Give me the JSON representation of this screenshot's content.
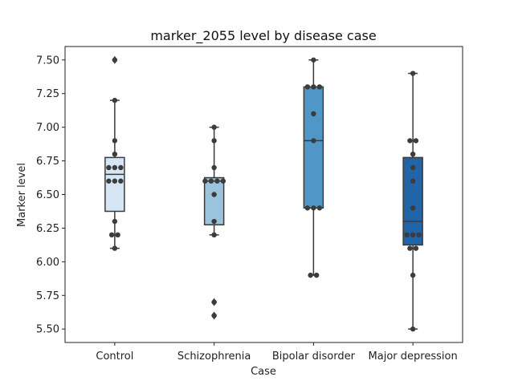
{
  "chart_data": {
    "type": "box",
    "title": "marker_2055 level by disease case",
    "xlabel": "Case",
    "ylabel": "Marker level",
    "ylim": [
      5.4,
      7.6
    ],
    "yticks": [
      "5.50",
      "5.75",
      "6.00",
      "6.25",
      "6.50",
      "6.75",
      "7.00",
      "7.25",
      "7.50"
    ],
    "ytick_values": [
      5.5,
      5.75,
      6.0,
      6.25,
      6.5,
      6.75,
      7.0,
      7.25,
      7.5
    ],
    "grid": false,
    "categories": [
      "Control",
      "Schizophrenia",
      "Bipolar disorder",
      "Major depression"
    ],
    "colors": [
      "#d6e6f4",
      "#9cc3dc",
      "#5096c6",
      "#2264a8"
    ],
    "boxes": [
      {
        "q1": 6.375,
        "median": 6.65,
        "q3": 6.775,
        "whisker_low": 6.1,
        "whisker_high": 7.2,
        "outliers": [
          7.5
        ]
      },
      {
        "q1": 6.275,
        "median": 6.6,
        "q3": 6.625,
        "whisker_low": 6.2,
        "whisker_high": 7.0,
        "outliers": [
          5.7,
          5.6
        ]
      },
      {
        "q1": 6.4,
        "median": 6.9,
        "q3": 7.3,
        "whisker_low": 5.9,
        "whisker_high": 7.5,
        "outliers": []
      },
      {
        "q1": 6.125,
        "median": 6.3,
        "q3": 6.775,
        "whisker_low": 5.5,
        "whisker_high": 7.4,
        "outliers": []
      }
    ],
    "points": [
      [
        7.5,
        7.2,
        6.9,
        6.8,
        6.7,
        6.7,
        6.7,
        6.6,
        6.6,
        6.6,
        6.3,
        6.2,
        6.2,
        6.1
      ],
      [
        7.0,
        6.9,
        6.7,
        6.6,
        6.6,
        6.6,
        6.6,
        6.5,
        6.3,
        6.2,
        5.7,
        5.6
      ],
      [
        7.5,
        7.3,
        7.3,
        7.3,
        7.1,
        6.9,
        6.4,
        6.4,
        6.4,
        5.9,
        5.9
      ],
      [
        7.4,
        6.9,
        6.9,
        6.8,
        6.7,
        6.6,
        6.4,
        6.2,
        6.2,
        6.2,
        6.1,
        6.1,
        5.9,
        5.5
      ]
    ]
  }
}
